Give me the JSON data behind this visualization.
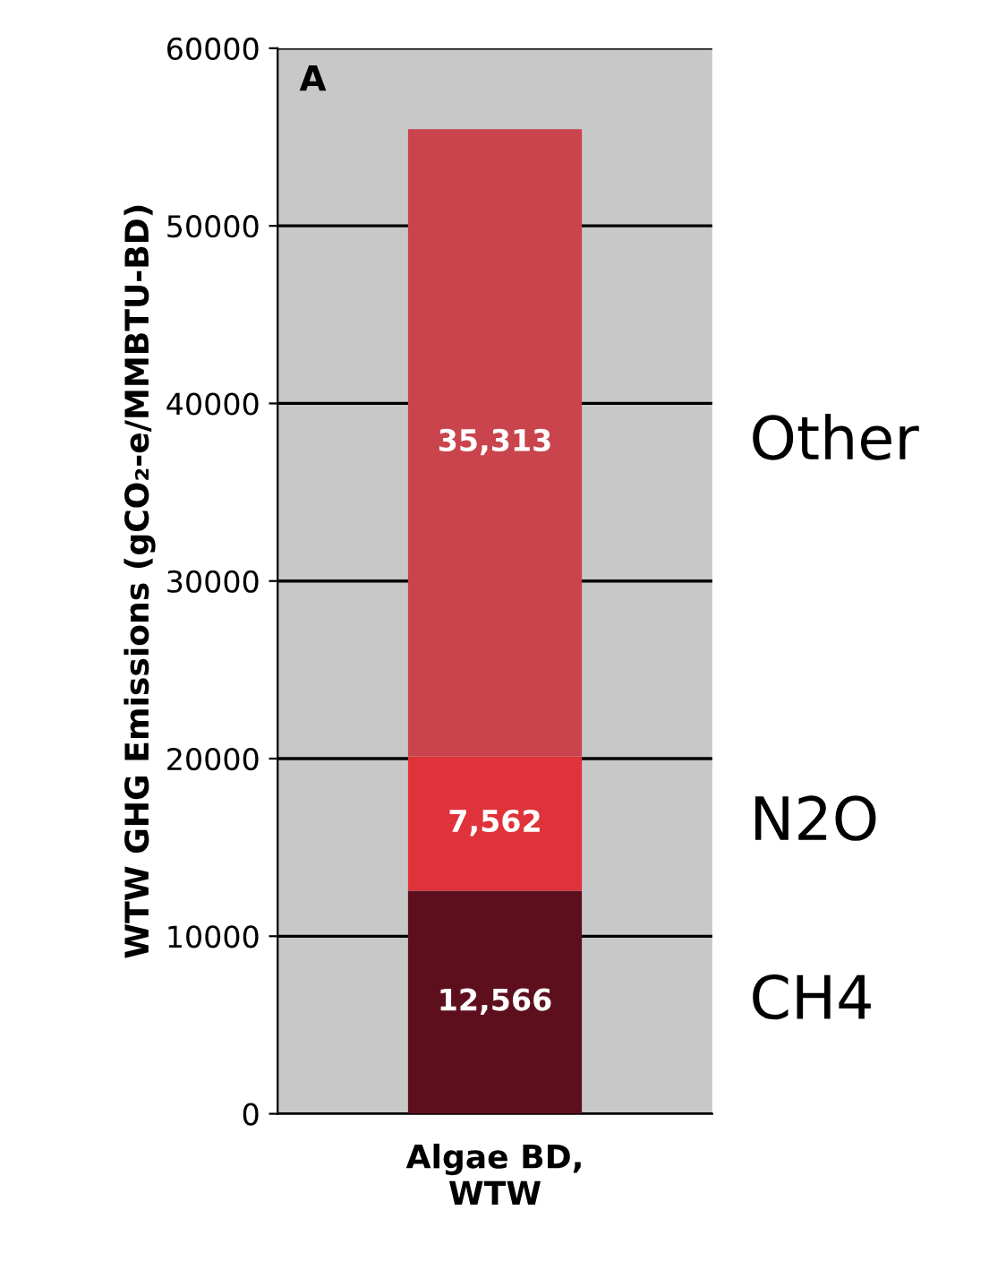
{
  "chart_data": {
    "type": "bar",
    "stacked": true,
    "categories": [
      "Algae BD,\nWTW"
    ],
    "ylabel": "WTW GHG Emissions (gCO₂-e/MMBTU-BD)",
    "annotations": [
      "A"
    ],
    "ylim": [
      0,
      60000
    ],
    "yticks": [
      0,
      10000,
      20000,
      30000,
      40000,
      50000,
      60000
    ],
    "grid": "y",
    "series": [
      {
        "name": "CH4",
        "color": "#5e0f1e",
        "values": [
          12566
        ],
        "value_labels": [
          "12,566"
        ]
      },
      {
        "name": "N2O",
        "color": "#e0323a",
        "values": [
          7562
        ],
        "value_labels": [
          "7,562"
        ]
      },
      {
        "name": "Other",
        "color": "#c9444c",
        "values": [
          35313
        ],
        "value_labels": [
          "35,313"
        ]
      }
    ]
  }
}
